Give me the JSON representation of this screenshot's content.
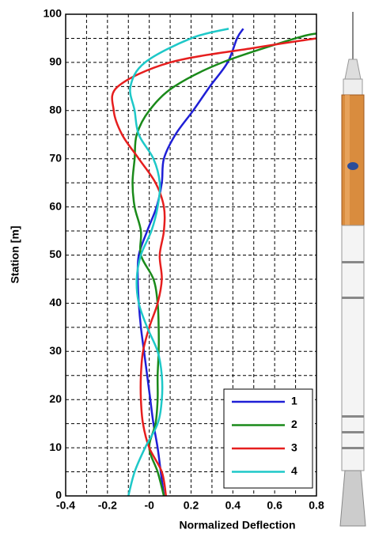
{
  "chart_data": {
    "type": "line",
    "xlabel": "Normalized Deflection",
    "ylabel": "Station [m]",
    "xlim": [
      -0.4,
      0.8
    ],
    "xticks": [
      -0.4,
      -0.2,
      {
        "value": 0,
        "label": "-0"
      },
      0.2,
      0.4,
      0.6,
      0.8
    ],
    "x_minor_ticks": [
      -0.3,
      -0.1,
      0.1,
      0.3,
      0.5,
      0.7
    ],
    "ylim": [
      0,
      100
    ],
    "yticks": [
      0,
      10,
      20,
      30,
      40,
      50,
      60,
      70,
      80,
      90,
      100
    ],
    "y_minor_ticks": [
      5,
      15,
      25,
      35,
      45,
      55,
      65,
      75,
      85,
      95
    ],
    "grid": true,
    "legend": "lower right",
    "series": [
      {
        "name": "1",
        "color": "#1f1fd6",
        "x": [
          0.07,
          0.055,
          0.04,
          0.02,
          0.005,
          -0.01,
          -0.025,
          -0.04,
          -0.05,
          -0.055,
          -0.05,
          -0.01,
          0.035,
          0.06,
          0.07,
          0.125,
          0.21,
          0.29,
          0.375,
          0.42,
          0.45
        ],
        "y": [
          0,
          5,
          10,
          15,
          20,
          25,
          30,
          35,
          40,
          45,
          50,
          55,
          60,
          65,
          70,
          75,
          80,
          85,
          90,
          95,
          97
        ]
      },
      {
        "name": "2",
        "color": "#1a8a1a",
        "x": [
          0.07,
          0.04,
          0.0,
          0.03,
          0.04,
          0.04,
          0.045,
          0.045,
          0.04,
          0.02,
          -0.04,
          -0.04,
          -0.07,
          -0.08,
          -0.07,
          -0.06,
          0.0,
          0.12,
          0.35,
          0.7,
          0.8
        ],
        "y": [
          0,
          5,
          10,
          15,
          20,
          25,
          30,
          35,
          40,
          45,
          50,
          55,
          60,
          65,
          70,
          75,
          80,
          85,
          90,
          95,
          96
        ]
      },
      {
        "name": "3",
        "color": "#e61e1e",
        "x": [
          0.08,
          0.06,
          0.0,
          -0.03,
          -0.04,
          -0.04,
          -0.03,
          0.0,
          0.04,
          0.06,
          0.05,
          0.07,
          0.07,
          0.03,
          -0.05,
          -0.13,
          -0.17,
          -0.15,
          0.1,
          0.5,
          0.8
        ],
        "y": [
          0,
          5,
          10,
          15,
          20,
          25,
          30,
          35,
          40,
          45,
          50,
          55,
          60,
          65,
          70,
          75,
          80,
          85,
          90,
          93,
          95
        ]
      },
      {
        "name": "4",
        "color": "#1ec8c8",
        "x": [
          -0.1,
          -0.07,
          -0.02,
          0.04,
          0.06,
          0.06,
          0.04,
          -0.01,
          -0.05,
          -0.06,
          -0.04,
          0.01,
          0.04,
          0.05,
          0.02,
          -0.05,
          -0.07,
          -0.09,
          -0.02,
          0.2,
          0.38
        ],
        "y": [
          0,
          5,
          10,
          15,
          20,
          25,
          30,
          35,
          40,
          45,
          50,
          55,
          60,
          65,
          70,
          75,
          80,
          85,
          90,
          95,
          97
        ]
      }
    ]
  }
}
